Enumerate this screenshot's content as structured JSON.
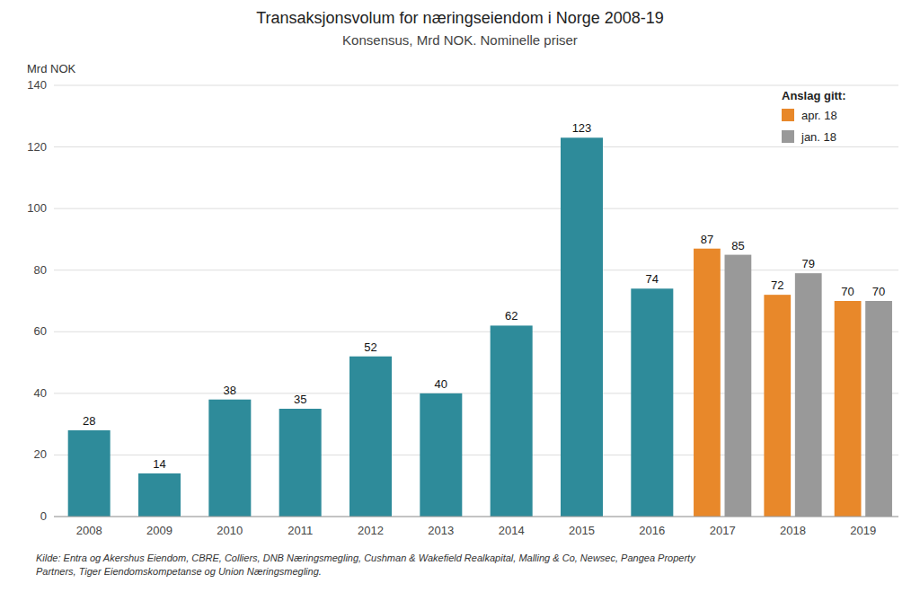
{
  "chart_data": {
    "type": "bar",
    "title": "Transaksjonsvolum for næringseiendom i Norge 2008-19",
    "subtitle": "Konsensus, Mrd NOK. Nominelle priser",
    "ylabel": "Mrd NOK",
    "categories": [
      "2008",
      "2009",
      "2010",
      "2011",
      "2012",
      "2013",
      "2014",
      "2015",
      "2016",
      "2017",
      "2018",
      "2019"
    ],
    "series": [
      {
        "color": "#2E8B9A",
        "values": [
          28,
          14,
          38,
          35,
          52,
          40,
          62,
          123,
          74,
          null,
          null,
          null
        ]
      },
      {
        "name": "apr. 18",
        "color": "#E8882A",
        "values": [
          null,
          null,
          null,
          null,
          null,
          null,
          null,
          null,
          null,
          87,
          72,
          70
        ]
      },
      {
        "name": "jan. 18",
        "color": "#999999",
        "values": [
          null,
          null,
          null,
          null,
          null,
          null,
          null,
          null,
          null,
          85,
          79,
          70
        ]
      }
    ],
    "legend_title": "Anslag gitt:",
    "caption": "Kilde: Entra og Akershus Eiendom, CBRE, Colliers, DNB Næringsmegling, Cushman & Wakefield Realkapital, Malling & Co, Newsec, Pangea Property\nPartners, Tiger Eiendomskompetanse og Union Næringsmegling.",
    "ylim": [
      0,
      140
    ],
    "yticks": [
      0,
      20,
      40,
      60,
      80,
      100,
      120,
      140
    ],
    "grid": true,
    "legend": "upper right",
    "data_labels": true
  }
}
